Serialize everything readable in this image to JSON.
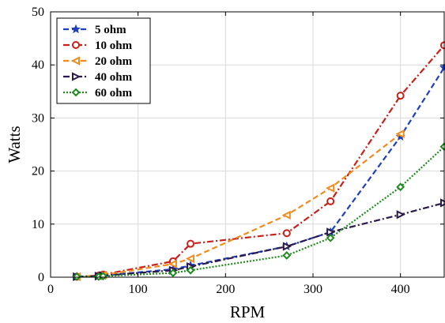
{
  "chart_data": {
    "type": "line",
    "xlabel": "RPM",
    "ylabel": "Watts",
    "xlim": [
      0,
      450
    ],
    "ylim": [
      0,
      50
    ],
    "xticks": [
      0,
      100,
      200,
      300,
      400
    ],
    "yticks": [
      0,
      10,
      20,
      30,
      40,
      50
    ],
    "grid": true,
    "legend_position": "top-left",
    "series": [
      {
        "name": "5 ohm",
        "color": "#1f3fbf",
        "dash": "dashed",
        "marker": "star",
        "x": [
          30,
          55,
          60,
          140,
          160,
          270,
          320,
          400,
          450
        ],
        "y": [
          0.1,
          0.2,
          0.3,
          1.5,
          2.2,
          5.8,
          8.5,
          26.5,
          39.5
        ]
      },
      {
        "name": "10 ohm",
        "color": "#c8201a",
        "dash": "dashdot",
        "marker": "circle",
        "x": [
          30,
          55,
          60,
          140,
          160,
          270,
          320,
          400,
          450
        ],
        "y": [
          0.1,
          0.3,
          0.5,
          3.0,
          6.3,
          8.3,
          14.3,
          34.2,
          43.7
        ]
      },
      {
        "name": "20 ohm",
        "color": "#f08c1e",
        "dash": "dashed",
        "marker": "triangle-left",
        "x": [
          30,
          55,
          60,
          140,
          160,
          270,
          320,
          400
        ],
        "y": [
          0.1,
          0.3,
          0.4,
          2.5,
          3.5,
          11.7,
          16.8,
          27.0
        ]
      },
      {
        "name": "40 ohm",
        "color": "#2a1a4a",
        "dash": "dashdot",
        "marker": "triangle-right",
        "x": [
          30,
          55,
          60,
          140,
          160,
          270,
          320,
          400,
          450
        ],
        "y": [
          0.1,
          0.2,
          0.3,
          1.3,
          2.0,
          5.8,
          8.5,
          11.8,
          14.0
        ]
      },
      {
        "name": "60 ohm",
        "color": "#1f8a1f",
        "dash": "dotted",
        "marker": "diamond",
        "x": [
          30,
          55,
          60,
          140,
          160,
          270,
          320,
          400,
          450
        ],
        "y": [
          0.1,
          0.1,
          0.2,
          0.8,
          1.3,
          4.1,
          7.4,
          17.0,
          24.6
        ]
      }
    ]
  }
}
